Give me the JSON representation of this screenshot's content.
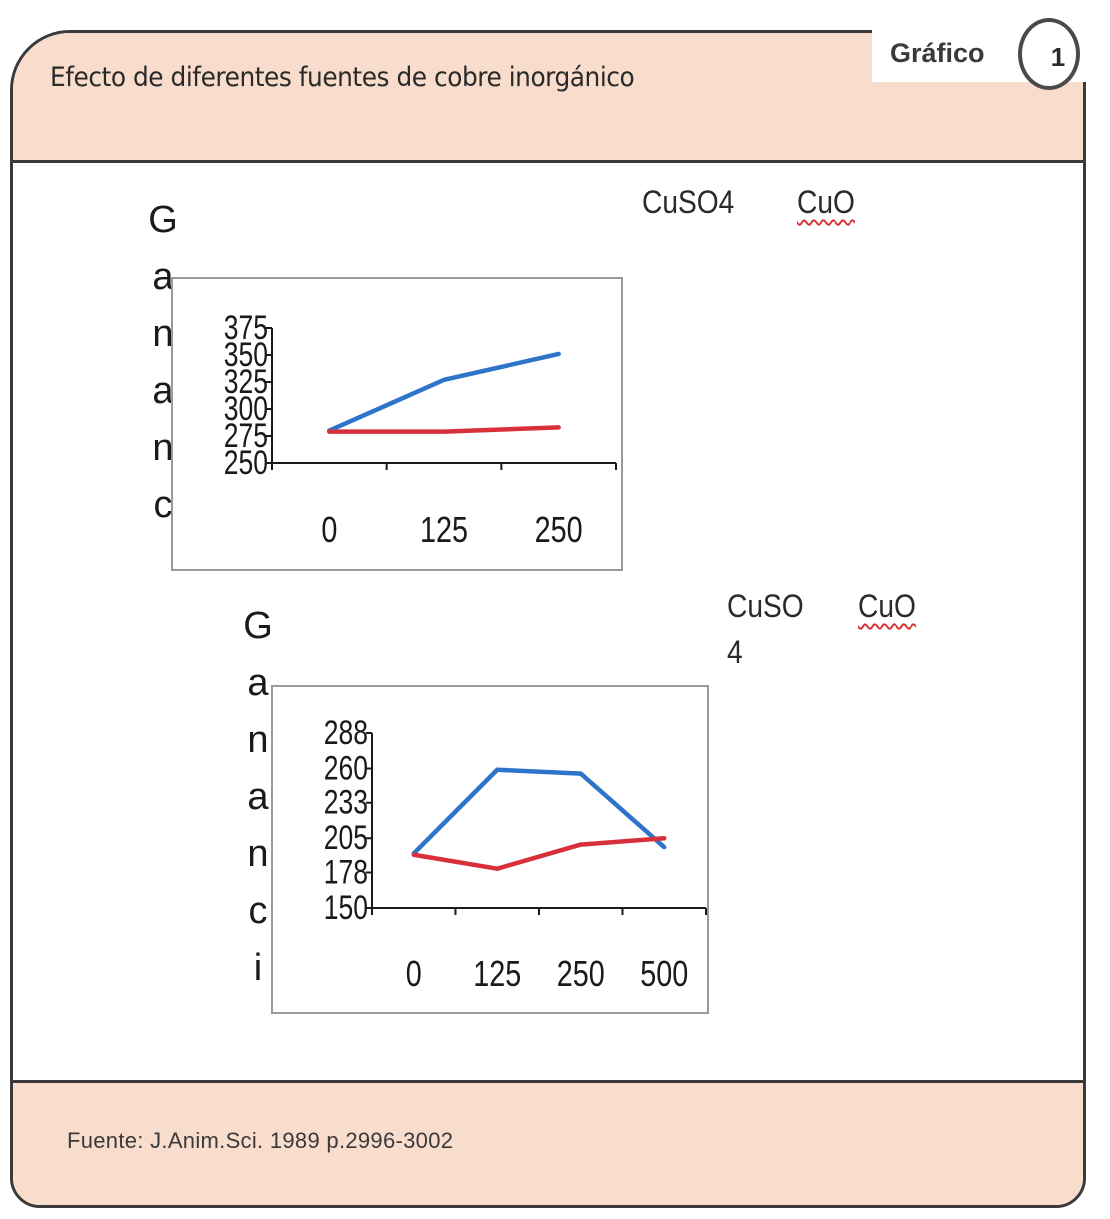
{
  "header": {
    "title": "Efecto de diferentes fuentes de cobre inorgánico",
    "grafico_label": "Gráfico",
    "badge_number": "1"
  },
  "footer": {
    "source": "Fuente: J.Anim.Sci. 1989 p.2996-3002"
  },
  "colors": {
    "band": "#f8ddcc",
    "border": "#3a3a3a",
    "series_cuso4": "#2e74c8",
    "series_cuo": "#d8303a"
  },
  "chart_data": [
    {
      "type": "line",
      "title": "",
      "ylabel_chars": [
        "G",
        "a",
        "n",
        "a",
        "n",
        "c"
      ],
      "legend": [
        "CuSO4",
        "CuO"
      ],
      "legend_placement": "top-right",
      "x": [
        "0",
        "125",
        "250"
      ],
      "yticks": [
        "375",
        "350",
        "325",
        "300",
        "275",
        "250"
      ],
      "ylim": [
        250,
        375
      ],
      "grid": false,
      "series": [
        {
          "name": "CuSO4",
          "color": "#2e74c8",
          "values": [
            280,
            327,
            351
          ]
        },
        {
          "name": "CuO",
          "color": "#d8303a",
          "values": [
            279,
            279,
            283
          ]
        }
      ]
    },
    {
      "type": "line",
      "title": "",
      "ylabel_chars": [
        "G",
        "a",
        "n",
        "a",
        "n",
        "c",
        "i"
      ],
      "legend": [
        "CuSO",
        "4",
        "CuO"
      ],
      "legend_placement": "top-right",
      "x": [
        "0",
        "125",
        "250",
        "500"
      ],
      "yticks": [
        "288",
        "260",
        "233",
        "205",
        "178",
        "150"
      ],
      "ylim": [
        150,
        288
      ],
      "grid": false,
      "series": [
        {
          "name": "CuSO4",
          "color": "#2e74c8",
          "values": [
            193,
            259,
            256,
            198
          ]
        },
        {
          "name": "CuO",
          "color": "#d8303a",
          "values": [
            192,
            181,
            200,
            205
          ]
        }
      ]
    }
  ]
}
